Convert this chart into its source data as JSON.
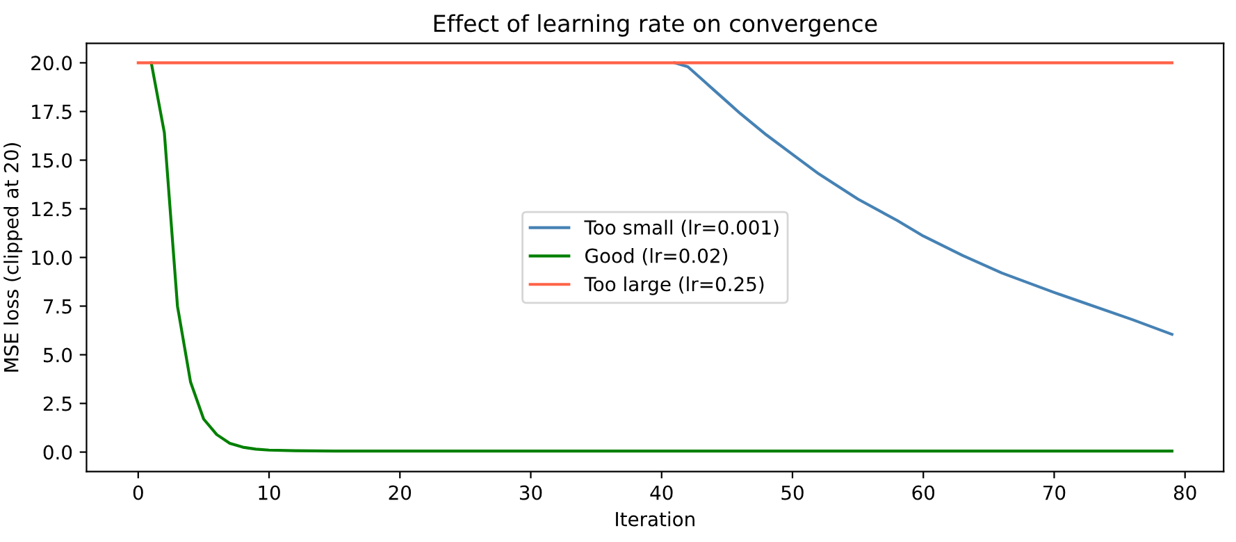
{
  "chart_data": {
    "type": "line",
    "title": "Effect of learning rate on convergence",
    "xlabel": "Iteration",
    "ylabel": "MSE loss (clipped at 20)",
    "xlim": [
      -3.95,
      82.95
    ],
    "ylim": [
      -1,
      21
    ],
    "xticks": [
      0,
      10,
      20,
      30,
      40,
      50,
      60,
      70,
      80
    ],
    "yticks": [
      {
        "value": 0,
        "label": "0.0"
      },
      {
        "value": 2.5,
        "label": "2.5"
      },
      {
        "value": 5,
        "label": "5.0"
      },
      {
        "value": 7.5,
        "label": "7.5"
      },
      {
        "value": 10,
        "label": "10.0"
      },
      {
        "value": 12.5,
        "label": "12.5"
      },
      {
        "value": 15,
        "label": "15.0"
      },
      {
        "value": 17.5,
        "label": "17.5"
      },
      {
        "value": 20,
        "label": "20.0"
      }
    ],
    "grid": false,
    "legend": "center",
    "marker": "none",
    "line_style": "solid",
    "series": [
      {
        "name": "Too small (lr=0.001)",
        "color": "#4682b4",
        "x": [
          41,
          42,
          43,
          44,
          45,
          46,
          48,
          50,
          52,
          55,
          58,
          60,
          63,
          66,
          70,
          73,
          76,
          79
        ],
        "values": [
          20,
          19.8,
          19.2,
          18.6,
          18.0,
          17.4,
          16.3,
          15.3,
          14.3,
          13.0,
          11.9,
          11.1,
          10.1,
          9.2,
          8.2,
          7.5,
          6.8,
          6.05
        ]
      },
      {
        "name": "Good (lr=0.02)",
        "color": "#008000",
        "x": [
          1,
          2,
          3,
          4,
          5,
          6,
          7,
          8,
          9,
          10,
          12,
          15,
          79
        ],
        "values": [
          20,
          16.4,
          7.5,
          3.6,
          1.7,
          0.9,
          0.45,
          0.25,
          0.15,
          0.1,
          0.07,
          0.05,
          0.05
        ]
      },
      {
        "name": "Too large (lr=0.25)",
        "color": "#ff6347",
        "x": [
          0,
          79
        ],
        "values": [
          20,
          20
        ]
      }
    ]
  }
}
